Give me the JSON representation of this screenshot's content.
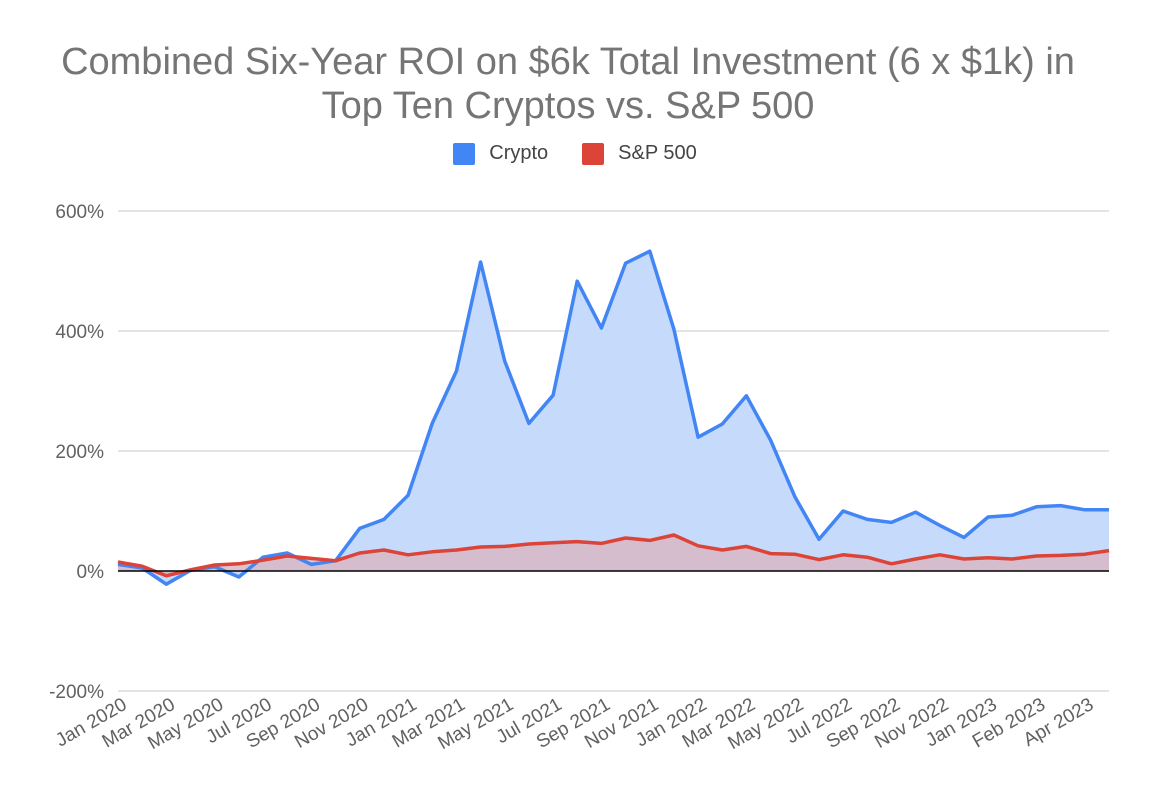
{
  "chart_data": {
    "type": "area",
    "title_line1": "Combined Six-Year ROI on $6k Total Investment (6 x $1k) in",
    "title_line2": "Top Ten Cryptos vs. S&P 500",
    "legend_position": "top",
    "grid": true,
    "ylim": [
      -200,
      600
    ],
    "yticks": [
      -200,
      0,
      200,
      400,
      600
    ],
    "ytick_labels": [
      "-200%",
      "0%",
      "200%",
      "400%",
      "600%"
    ],
    "xtick_labels": [
      "Jan 2020",
      "Mar 2020",
      "May 2020",
      "Jul 2020",
      "Sep 2020",
      "Nov 2020",
      "Jan 2021",
      "Mar 2021",
      "May 2021",
      "Jul 2021",
      "Sep 2021",
      "Nov 2021",
      "Jan 2022",
      "Mar 2022",
      "May 2022",
      "Jul 2022",
      "Sep 2022",
      "Nov 2022",
      "Jan 2023",
      "Feb 2023",
      "Apr 2023"
    ],
    "xtick_indices": [
      0,
      2,
      4,
      6,
      8,
      10,
      12,
      14,
      16,
      18,
      20,
      22,
      24,
      26,
      28,
      30,
      32,
      34,
      36,
      38,
      40
    ],
    "series": [
      {
        "name": "Crypto",
        "color": "#4285f4",
        "fill": "#c6dafc",
        "values": [
          11,
          5,
          -22,
          1,
          7,
          -10,
          23,
          30,
          11,
          17,
          71,
          86,
          126,
          246,
          333,
          515,
          350,
          246,
          293,
          483,
          405,
          513,
          533,
          403,
          223,
          245,
          292,
          218,
          124,
          53,
          100,
          86,
          81,
          98,
          76,
          56,
          90,
          93,
          107,
          109,
          102,
          102
        ]
      },
      {
        "name": "S&P 500",
        "color": "#db4437",
        "fill": "#d8b7c4",
        "values": [
          15,
          8,
          -8,
          2,
          10,
          12,
          18,
          25,
          21,
          17,
          30,
          35,
          27,
          32,
          35,
          40,
          41,
          45,
          47,
          49,
          46,
          55,
          51,
          60,
          42,
          35,
          41,
          29,
          28,
          19,
          27,
          23,
          12,
          20,
          27,
          20,
          22,
          20,
          25,
          26,
          28,
          34
        ]
      }
    ]
  }
}
